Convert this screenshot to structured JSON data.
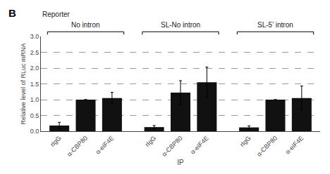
{
  "chart_data": {
    "type": "bar",
    "panel_label": "B",
    "reporter_label": "Reporter",
    "group_labels": [
      "No intron",
      "SL-No intron",
      "SL-5’ intron"
    ],
    "categories": [
      "rIgG",
      "α-CBP80",
      "α-eIF4E",
      "rIgG",
      "α-CBP80",
      "α-eIF4E",
      "rIgG",
      "α-CBP80",
      "α-eIF4E"
    ],
    "values": [
      0.18,
      1.0,
      1.05,
      0.13,
      1.22,
      1.55,
      0.12,
      1.0,
      1.05
    ],
    "errors": [
      0.1,
      0.0,
      0.18,
      0.05,
      0.38,
      0.48,
      0.05,
      0.0,
      0.38
    ],
    "color": "#111111",
    "x_label": "IP",
    "y_label": "Relative level of RLuc mRNA",
    "ylim": [
      0,
      3.0
    ],
    "yticks": [
      {
        "value": 0,
        "label": "0.0"
      },
      0.5,
      {
        "value": 1.0,
        "label": "1.0"
      },
      1.5,
      {
        "value": 2.0,
        "label": "2.0"
      },
      2.5,
      {
        "value": 3.0,
        "label": "3.0"
      }
    ],
    "grid": true
  }
}
